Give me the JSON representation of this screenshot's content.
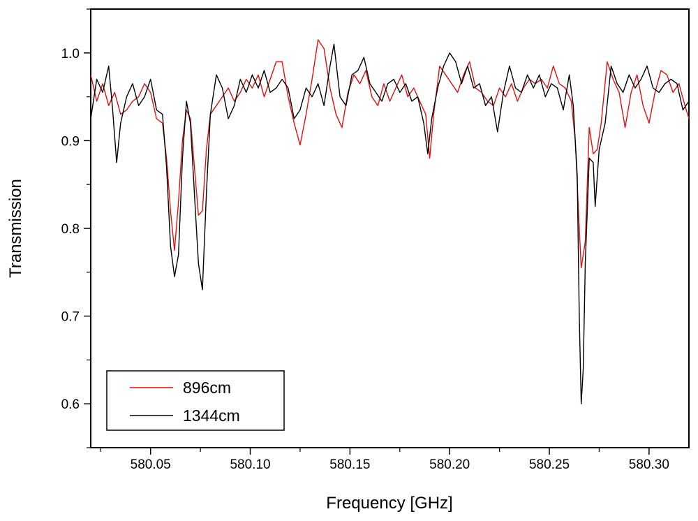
{
  "chart_data": {
    "type": "line",
    "xlabel": "Frequency [GHz]",
    "ylabel": "Transmission",
    "xlim": [
      580.02,
      580.32
    ],
    "ylim": [
      0.55,
      1.05
    ],
    "grid": false,
    "legend_placement": "bottom-left",
    "x_ticks": [
      {
        "value": 580.05,
        "label": "580.05"
      },
      {
        "value": 580.1,
        "label": "580.10"
      },
      {
        "value": 580.15,
        "label": "580.15"
      },
      {
        "value": 580.2,
        "label": "580.20"
      },
      {
        "value": 580.25,
        "label": "580.25"
      },
      {
        "value": 580.3,
        "label": "580.30"
      }
    ],
    "y_ticks": [
      {
        "value": 0.6,
        "label": "0.6"
      },
      {
        "value": 0.7,
        "label": "0.7"
      },
      {
        "value": 0.8,
        "label": "0.8"
      },
      {
        "value": 0.9,
        "label": "0.9"
      },
      {
        "value": 1.0,
        "label": "1.0"
      }
    ],
    "series": [
      {
        "name": "896cm",
        "color": "#e01010",
        "points": [
          [
            580.02,
            0.975
          ],
          [
            580.023,
            0.945
          ],
          [
            580.026,
            0.965
          ],
          [
            580.029,
            0.94
          ],
          [
            580.032,
            0.955
          ],
          [
            580.035,
            0.93
          ],
          [
            580.038,
            0.935
          ],
          [
            580.041,
            0.945
          ],
          [
            580.044,
            0.95
          ],
          [
            580.047,
            0.965
          ],
          [
            580.05,
            0.955
          ],
          [
            580.053,
            0.925
          ],
          [
            580.056,
            0.92
          ],
          [
            580.058,
            0.88
          ],
          [
            580.06,
            0.82
          ],
          [
            580.062,
            0.775
          ],
          [
            580.064,
            0.83
          ],
          [
            580.066,
            0.9
          ],
          [
            580.068,
            0.935
          ],
          [
            580.07,
            0.925
          ],
          [
            580.072,
            0.87
          ],
          [
            580.074,
            0.815
          ],
          [
            580.076,
            0.82
          ],
          [
            580.078,
            0.89
          ],
          [
            580.08,
            0.93
          ],
          [
            580.083,
            0.94
          ],
          [
            580.086,
            0.95
          ],
          [
            580.089,
            0.96
          ],
          [
            580.092,
            0.945
          ],
          [
            580.095,
            0.955
          ],
          [
            580.098,
            0.97
          ],
          [
            580.101,
            0.96
          ],
          [
            580.104,
            0.975
          ],
          [
            580.107,
            0.95
          ],
          [
            580.11,
            0.97
          ],
          [
            580.113,
            0.99
          ],
          [
            580.116,
            0.99
          ],
          [
            580.119,
            0.95
          ],
          [
            580.122,
            0.92
          ],
          [
            580.125,
            0.895
          ],
          [
            580.128,
            0.93
          ],
          [
            580.131,
            0.97
          ],
          [
            580.134,
            1.015
          ],
          [
            580.137,
            1.005
          ],
          [
            580.14,
            0.96
          ],
          [
            580.143,
            0.93
          ],
          [
            580.146,
            0.915
          ],
          [
            580.149,
            0.955
          ],
          [
            580.152,
            0.975
          ],
          [
            580.155,
            0.965
          ],
          [
            580.158,
            0.98
          ],
          [
            580.161,
            0.95
          ],
          [
            580.164,
            0.94
          ],
          [
            580.167,
            0.965
          ],
          [
            580.17,
            0.945
          ],
          [
            580.173,
            0.96
          ],
          [
            580.176,
            0.975
          ],
          [
            580.179,
            0.95
          ],
          [
            580.182,
            0.96
          ],
          [
            580.185,
            0.945
          ],
          [
            580.188,
            0.93
          ],
          [
            580.19,
            0.88
          ],
          [
            580.192,
            0.93
          ],
          [
            580.195,
            0.985
          ],
          [
            580.198,
            0.975
          ],
          [
            580.201,
            0.965
          ],
          [
            580.204,
            0.955
          ],
          [
            580.207,
            0.975
          ],
          [
            580.21,
            0.99
          ],
          [
            580.213,
            0.96
          ],
          [
            580.216,
            0.955
          ],
          [
            580.219,
            0.945
          ],
          [
            580.222,
            0.94
          ],
          [
            580.225,
            0.96
          ],
          [
            580.228,
            0.95
          ],
          [
            580.231,
            0.965
          ],
          [
            580.234,
            0.945
          ],
          [
            580.237,
            0.96
          ],
          [
            580.24,
            0.97
          ],
          [
            580.243,
            0.965
          ],
          [
            580.246,
            0.97
          ],
          [
            580.249,
            0.96
          ],
          [
            580.252,
            0.985
          ],
          [
            580.255,
            0.965
          ],
          [
            580.258,
            0.96
          ],
          [
            580.261,
            0.945
          ],
          [
            580.263,
            0.9
          ],
          [
            580.265,
            0.8
          ],
          [
            580.266,
            0.755
          ],
          [
            580.268,
            0.785
          ],
          [
            580.27,
            0.915
          ],
          [
            580.272,
            0.885
          ],
          [
            580.274,
            0.89
          ],
          [
            580.276,
            0.92
          ],
          [
            580.279,
            0.99
          ],
          [
            580.282,
            0.97
          ],
          [
            580.285,
            0.955
          ],
          [
            580.288,
            0.915
          ],
          [
            580.291,
            0.955
          ],
          [
            580.294,
            0.975
          ],
          [
            580.297,
            0.94
          ],
          [
            580.3,
            0.92
          ],
          [
            580.303,
            0.955
          ],
          [
            580.306,
            0.98
          ],
          [
            580.309,
            0.975
          ],
          [
            580.312,
            0.955
          ],
          [
            580.315,
            0.965
          ],
          [
            580.318,
            0.94
          ],
          [
            580.32,
            0.925
          ]
        ]
      },
      {
        "name": "1344cm",
        "color": "#000000",
        "points": [
          [
            580.02,
            0.925
          ],
          [
            580.023,
            0.97
          ],
          [
            580.026,
            0.955
          ],
          [
            580.029,
            0.985
          ],
          [
            580.031,
            0.935
          ],
          [
            580.033,
            0.875
          ],
          [
            580.035,
            0.92
          ],
          [
            580.038,
            0.95
          ],
          [
            580.041,
            0.965
          ],
          [
            580.044,
            0.94
          ],
          [
            580.047,
            0.95
          ],
          [
            580.05,
            0.97
          ],
          [
            580.053,
            0.935
          ],
          [
            580.056,
            0.93
          ],
          [
            580.058,
            0.87
          ],
          [
            580.06,
            0.78
          ],
          [
            580.062,
            0.745
          ],
          [
            580.064,
            0.77
          ],
          [
            580.066,
            0.88
          ],
          [
            580.068,
            0.945
          ],
          [
            580.07,
            0.92
          ],
          [
            580.072,
            0.84
          ],
          [
            580.074,
            0.76
          ],
          [
            580.076,
            0.73
          ],
          [
            580.078,
            0.84
          ],
          [
            580.08,
            0.93
          ],
          [
            580.083,
            0.975
          ],
          [
            580.086,
            0.96
          ],
          [
            580.089,
            0.925
          ],
          [
            580.092,
            0.94
          ],
          [
            580.095,
            0.97
          ],
          [
            580.098,
            0.955
          ],
          [
            580.101,
            0.975
          ],
          [
            580.104,
            0.96
          ],
          [
            580.107,
            0.98
          ],
          [
            580.11,
            0.955
          ],
          [
            580.113,
            0.96
          ],
          [
            580.116,
            0.97
          ],
          [
            580.119,
            0.96
          ],
          [
            580.122,
            0.925
          ],
          [
            580.125,
            0.935
          ],
          [
            580.128,
            0.96
          ],
          [
            580.131,
            0.95
          ],
          [
            580.134,
            0.965
          ],
          [
            580.137,
            0.94
          ],
          [
            580.14,
            0.985
          ],
          [
            580.142,
            1.01
          ],
          [
            580.145,
            0.95
          ],
          [
            580.148,
            0.94
          ],
          [
            580.151,
            0.975
          ],
          [
            580.154,
            0.98
          ],
          [
            580.157,
            0.995
          ],
          [
            580.16,
            0.965
          ],
          [
            580.163,
            0.955
          ],
          [
            580.166,
            0.945
          ],
          [
            580.169,
            0.965
          ],
          [
            580.172,
            0.97
          ],
          [
            580.175,
            0.955
          ],
          [
            580.178,
            0.965
          ],
          [
            580.181,
            0.945
          ],
          [
            580.184,
            0.95
          ],
          [
            580.187,
            0.92
          ],
          [
            580.189,
            0.885
          ],
          [
            580.191,
            0.925
          ],
          [
            580.194,
            0.96
          ],
          [
            580.197,
            0.985
          ],
          [
            580.2,
            1.0
          ],
          [
            580.203,
            0.99
          ],
          [
            580.206,
            0.965
          ],
          [
            580.209,
            0.985
          ],
          [
            580.212,
            0.96
          ],
          [
            580.215,
            0.965
          ],
          [
            580.218,
            0.94
          ],
          [
            580.221,
            0.95
          ],
          [
            580.224,
            0.91
          ],
          [
            580.227,
            0.955
          ],
          [
            580.23,
            0.985
          ],
          [
            580.233,
            0.96
          ],
          [
            580.236,
            0.955
          ],
          [
            580.239,
            0.975
          ],
          [
            580.242,
            0.96
          ],
          [
            580.245,
            0.975
          ],
          [
            580.248,
            0.95
          ],
          [
            580.251,
            0.965
          ],
          [
            580.254,
            0.96
          ],
          [
            580.257,
            0.935
          ],
          [
            580.26,
            0.975
          ],
          [
            580.262,
            0.94
          ],
          [
            580.264,
            0.86
          ],
          [
            580.265,
            0.7
          ],
          [
            580.266,
            0.6
          ],
          [
            580.267,
            0.64
          ],
          [
            580.268,
            0.76
          ],
          [
            580.27,
            0.88
          ],
          [
            580.272,
            0.875
          ],
          [
            580.273,
            0.825
          ],
          [
            580.275,
            0.89
          ],
          [
            580.278,
            0.92
          ],
          [
            580.281,
            0.985
          ],
          [
            580.284,
            0.965
          ],
          [
            580.287,
            0.955
          ],
          [
            580.29,
            0.975
          ],
          [
            580.293,
            0.96
          ],
          [
            580.296,
            0.97
          ],
          [
            580.299,
            0.985
          ],
          [
            580.302,
            0.96
          ],
          [
            580.305,
            0.955
          ],
          [
            580.308,
            0.965
          ],
          [
            580.311,
            0.97
          ],
          [
            580.314,
            0.965
          ],
          [
            580.317,
            0.935
          ],
          [
            580.32,
            0.945
          ]
        ]
      }
    ]
  }
}
